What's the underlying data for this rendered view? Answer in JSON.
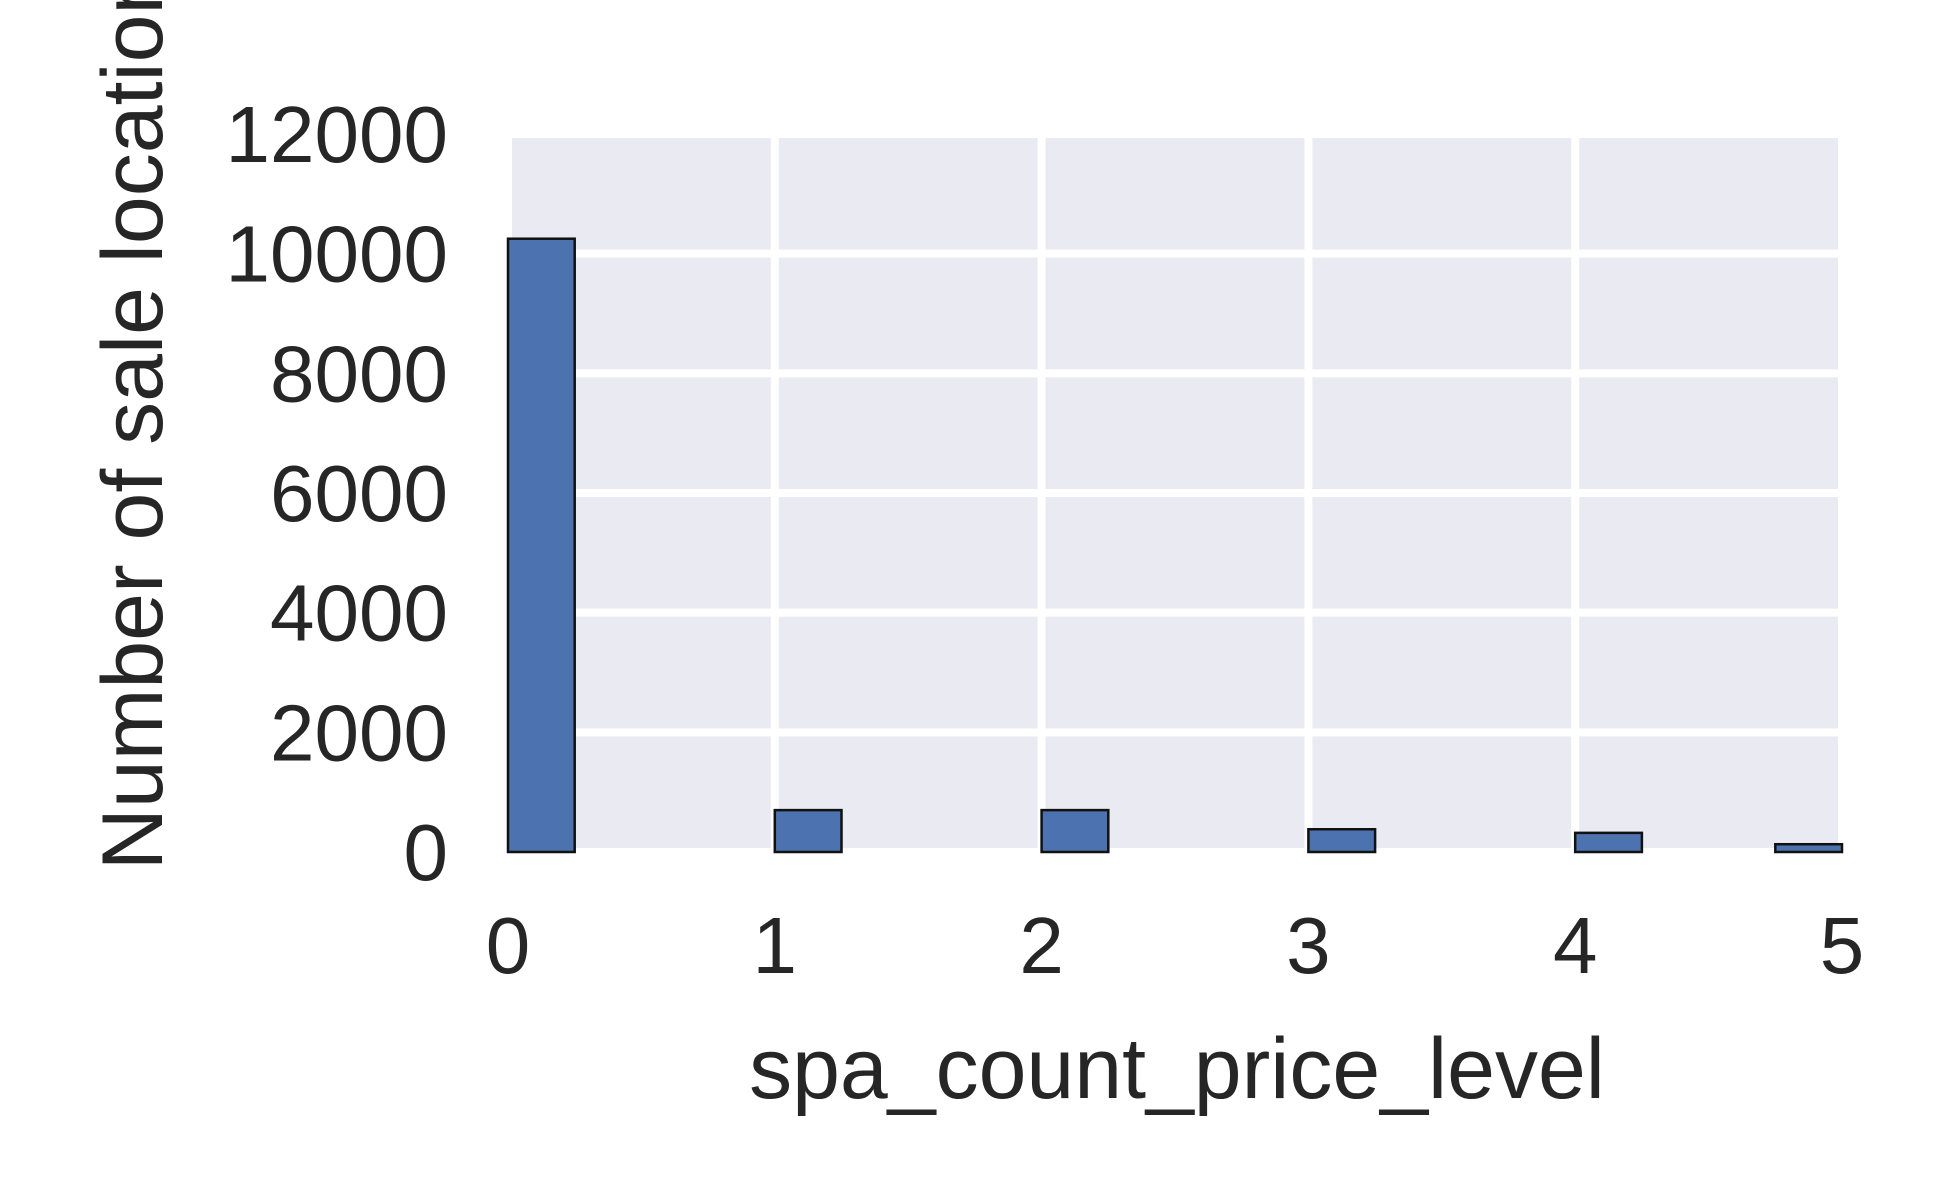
{
  "chart_data": {
    "type": "bar",
    "xlabel": "spa_count_price_level",
    "ylabel": "Number of sale locations",
    "xlim": [
      0,
      5
    ],
    "ylim": [
      0,
      12000
    ],
    "x_ticks": [
      0,
      1,
      2,
      3,
      4,
      5
    ],
    "x_tick_labels": [
      "0",
      "1",
      "2",
      "3",
      "4",
      "5"
    ],
    "y_ticks": [
      0,
      2000,
      4000,
      6000,
      8000,
      10000,
      12000
    ],
    "y_tick_labels": [
      "0",
      "2000",
      "4000",
      "6000",
      "8000",
      "10000",
      "12000"
    ],
    "bin_width": 0.25,
    "bins": [
      {
        "x": 0,
        "value": 10250
      },
      {
        "x": 1,
        "value": 700
      },
      {
        "x": 2,
        "value": 700
      },
      {
        "x": 3,
        "value": 380
      },
      {
        "x": 4,
        "value": 320
      },
      {
        "x": 4.75,
        "value": 130
      }
    ],
    "grid": true,
    "colors": {
      "bar": "#4c72b0",
      "plot_background": "#eaeaf2",
      "grid": "#ffffff",
      "text": "#262626"
    }
  }
}
